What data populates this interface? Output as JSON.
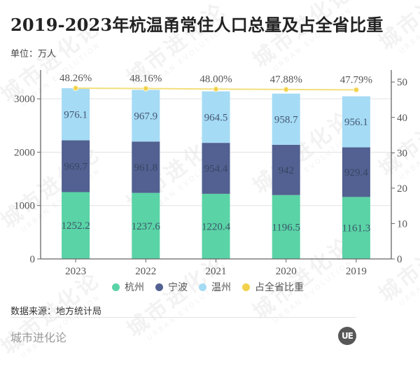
{
  "title": "2019-2023年杭温甬常住人口总量及占全省比重",
  "unit_label": "单位：万人",
  "source": "数据来源：地方统计局",
  "footer": {
    "brand": "城市进化论",
    "logo_text": "UE"
  },
  "watermark": {
    "text": "城市进化论",
    "subtext": "URBAN EVOLUTION"
  },
  "chart_data": {
    "type": "bar",
    "subtype": "stacked bar with line on secondary axis",
    "title": "2019-2023年杭温甬常住人口总量及占全省比重",
    "xlabel": "",
    "ylabel": "万人",
    "categories": [
      "2023",
      "2022",
      "2021",
      "2020",
      "2019"
    ],
    "series": [
      {
        "name": "杭州",
        "type": "bar",
        "stack": "total",
        "axis": "left",
        "color": "#5ad3a6",
        "values": [
          1252.2,
          1237.6,
          1220.4,
          1196.5,
          1161.3
        ]
      },
      {
        "name": "宁波",
        "type": "bar",
        "stack": "total",
        "axis": "left",
        "color": "#526191",
        "values": [
          969.7,
          961.8,
          954.4,
          942,
          929.4
        ]
      },
      {
        "name": "温州",
        "type": "bar",
        "stack": "total",
        "axis": "left",
        "color": "#a5dbf5",
        "values": [
          976.1,
          967.9,
          964.5,
          958.7,
          956.1
        ]
      },
      {
        "name": "占全省比重",
        "type": "line",
        "axis": "right",
        "unit": "%",
        "color": "#f2d24b",
        "values": [
          48.26,
          48.16,
          48.0,
          47.88,
          47.79
        ],
        "labels": [
          "48.26%",
          "48.16%",
          "48.00%",
          "47.88%",
          "47.79%"
        ]
      }
    ],
    "ylim": [
      0,
      3540
    ],
    "yticks": [
      0,
      1000,
      2000,
      3000
    ],
    "y2lim": [
      0,
      53.4
    ],
    "y2ticks": [
      0,
      10,
      20,
      30,
      40,
      50
    ],
    "grid": true,
    "legend": "bottom"
  }
}
